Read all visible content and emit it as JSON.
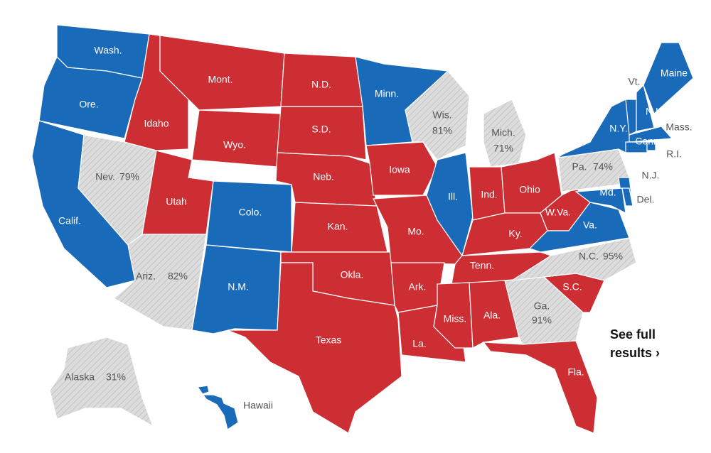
{
  "map": {
    "colors": {
      "dem": "#1a6aba",
      "rep": "#cc2e33",
      "pending": "#dcdcdc"
    },
    "states": [
      {
        "label": "Wash.",
        "result": "dem"
      },
      {
        "label": "Ore.",
        "result": "dem"
      },
      {
        "label": "Calif.",
        "result": "dem"
      },
      {
        "label": "Nev.",
        "reported": "79%",
        "result": "pending"
      },
      {
        "label": "Idaho",
        "result": "rep"
      },
      {
        "label": "Mont.",
        "result": "rep"
      },
      {
        "label": "Wyo.",
        "result": "rep"
      },
      {
        "label": "Utah",
        "result": "rep"
      },
      {
        "label": "Ariz.",
        "reported": "82%",
        "result": "pending"
      },
      {
        "label": "Colo.",
        "result": "dem"
      },
      {
        "label": "N.M.",
        "result": "dem"
      },
      {
        "label": "N.D.",
        "result": "rep"
      },
      {
        "label": "S.D.",
        "result": "rep"
      },
      {
        "label": "Neb.",
        "result": "rep"
      },
      {
        "label": "Kan.",
        "result": "rep"
      },
      {
        "label": "Okla.",
        "result": "rep"
      },
      {
        "label": "Texas",
        "result": "rep"
      },
      {
        "label": "Minn.",
        "result": "dem"
      },
      {
        "label": "Iowa",
        "result": "rep"
      },
      {
        "label": "Mo.",
        "result": "rep"
      },
      {
        "label": "Ark.",
        "result": "rep"
      },
      {
        "label": "La.",
        "result": "rep"
      },
      {
        "label": "Wis.",
        "reported": "81%",
        "result": "pending"
      },
      {
        "label": "Ill.",
        "result": "dem"
      },
      {
        "label": "Mich.",
        "reported": "71%",
        "result": "pending"
      },
      {
        "label": "Ind.",
        "result": "rep"
      },
      {
        "label": "Ohio",
        "result": "rep"
      },
      {
        "label": "Ky.",
        "result": "rep"
      },
      {
        "label": "W.Va.",
        "result": "rep"
      },
      {
        "label": "Va.",
        "result": "dem"
      },
      {
        "label": "Tenn.",
        "result": "rep"
      },
      {
        "label": "Miss.",
        "result": "rep"
      },
      {
        "label": "Ala.",
        "result": "rep"
      },
      {
        "label": "Ga.",
        "reported": "91%",
        "result": "pending"
      },
      {
        "label": "Fla.",
        "result": "rep"
      },
      {
        "label": "S.C.",
        "result": "rep"
      },
      {
        "label": "N.C.",
        "reported": "95%",
        "result": "pending"
      },
      {
        "label": "Pa.",
        "reported": "74%",
        "result": "pending"
      },
      {
        "label": "N.Y.",
        "result": "dem"
      },
      {
        "label": "N.J.",
        "result": "dem"
      },
      {
        "label": "Md.",
        "result": "dem"
      },
      {
        "label": "Del.",
        "result": "dem"
      },
      {
        "label": "Vt.",
        "result": "dem"
      },
      {
        "label": "N.H.",
        "result": "dem"
      },
      {
        "label": "Maine",
        "result": "dem"
      },
      {
        "label": "Mass.",
        "result": "dem"
      },
      {
        "label": "Conn.",
        "result": "dem"
      },
      {
        "label": "R.I.",
        "result": "dem"
      },
      {
        "label": "Alaska",
        "reported": "31%",
        "result": "pending"
      },
      {
        "label": "Hawaii",
        "result": "dem"
      }
    ],
    "link": "See full results ›"
  }
}
